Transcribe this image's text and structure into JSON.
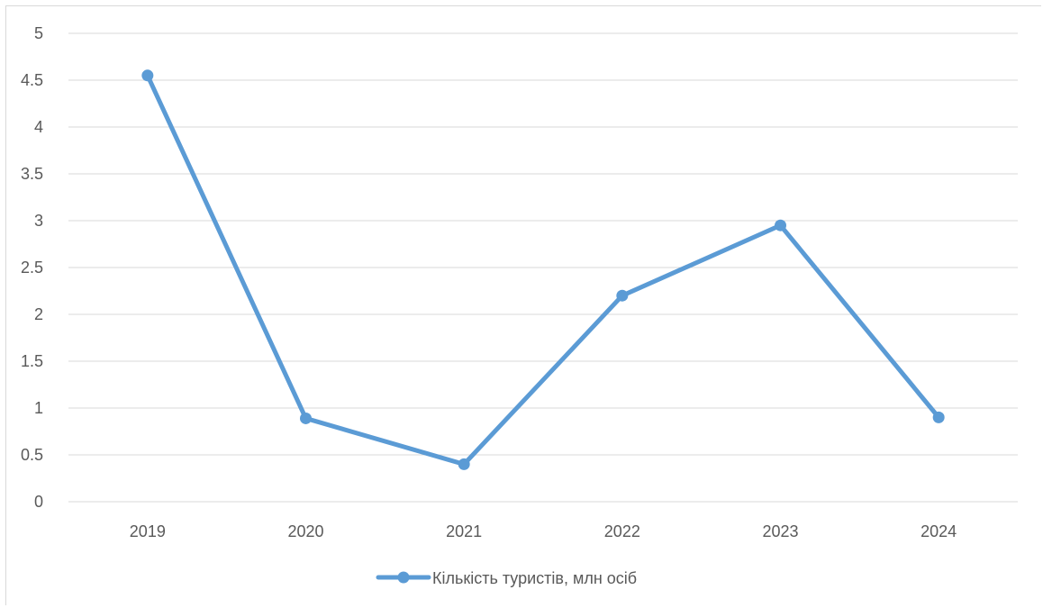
{
  "chart_data": {
    "type": "line",
    "categories": [
      "2019",
      "2020",
      "2021",
      "2022",
      "2023",
      "2024"
    ],
    "series": [
      {
        "name": "Кількість туристів, млн осіб",
        "values": [
          4.55,
          0.89,
          0.4,
          2.2,
          2.95,
          0.9
        ],
        "color": "#5b9bd5"
      }
    ],
    "ylim": [
      0,
      5
    ],
    "yticks": [
      "0",
      "0.5",
      "1",
      "1.5",
      "2",
      "2.5",
      "3",
      "3.5",
      "4",
      "4.5",
      "5"
    ],
    "grid": true,
    "legend_position": "bottom"
  }
}
